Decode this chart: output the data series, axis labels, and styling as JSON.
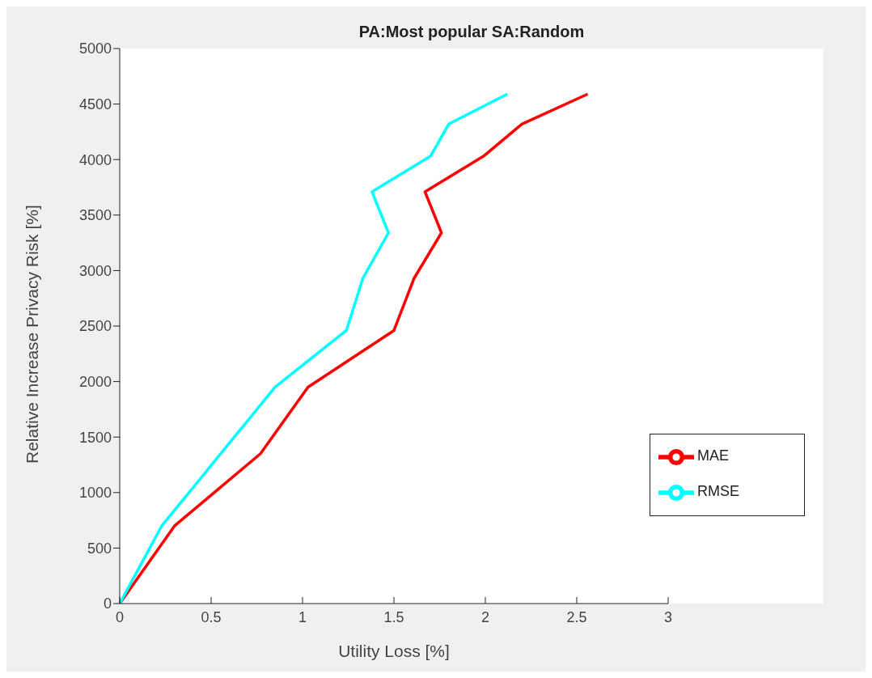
{
  "chart_data": {
    "type": "line",
    "title": "PA:Most popular SA:Random",
    "xlabel": "Utility Loss [%]",
    "ylabel": "Relative Increase Privacy Risk [%]",
    "series": [
      {
        "name": "MAE",
        "color": "#ff0000",
        "x": [
          0,
          0.3,
          0.77,
          1.03,
          1.5,
          1.61,
          1.76,
          1.67,
          1.99,
          2.2,
          2.56
        ],
        "values": [
          0,
          700,
          1350,
          1950,
          2460,
          2930,
          3340,
          3710,
          4030,
          4320,
          4590
        ]
      },
      {
        "name": "RMSE",
        "color": "#00ffff",
        "x": [
          0,
          0.23,
          0.85,
          1.24,
          1.33,
          1.47,
          1.38,
          1.7,
          1.8,
          2.12
        ],
        "values": [
          0,
          700,
          1950,
          2460,
          2930,
          3340,
          3710,
          4030,
          4320,
          4590
        ]
      }
    ],
    "xlim": [
      0,
      3
    ],
    "xticks": [
      0,
      0.5,
      1,
      1.5,
      2,
      2.5,
      3
    ],
    "ylim": [
      0,
      5000
    ],
    "yticks": [
      0,
      500,
      1000,
      1500,
      2000,
      2500,
      3000,
      3500,
      4000,
      4500,
      5000
    ],
    "grid": false,
    "legend": "bottom right",
    "marker": "none",
    "line_style": "solid"
  }
}
